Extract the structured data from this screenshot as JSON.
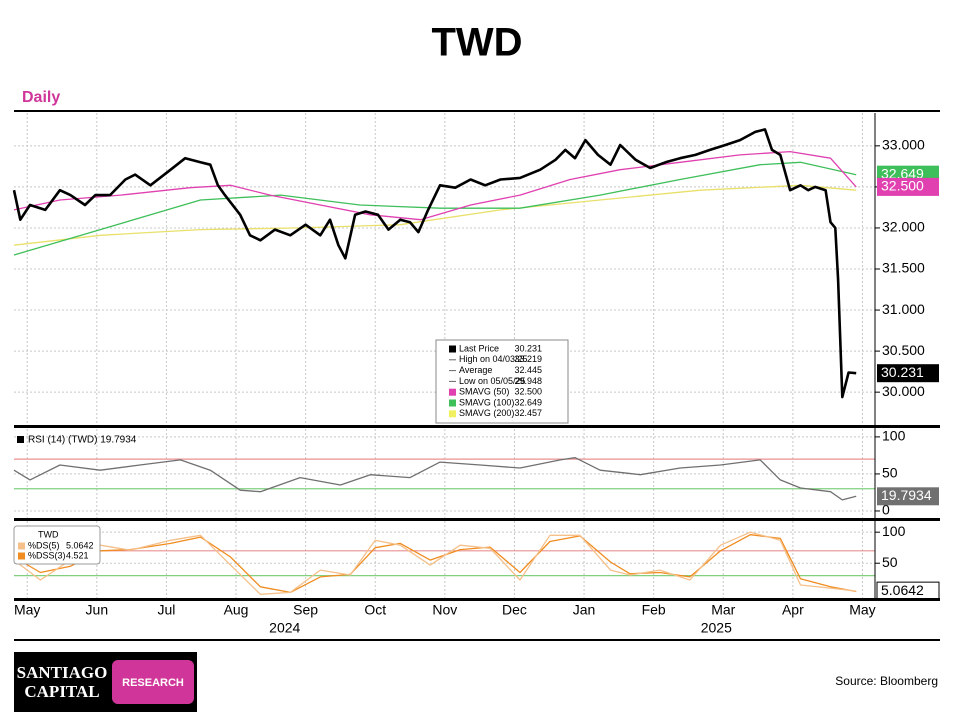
{
  "chart_data": [
    {
      "type": "line",
      "title": "TWD",
      "subtitle": "Daily",
      "xlim": [
        -0.19,
        12.18
      ],
      "ylim": [
        29.6,
        33.4
      ],
      "yticks": [
        {
          "value": 30,
          "label": "30.000"
        },
        {
          "value": 30.5,
          "label": "30.500"
        },
        {
          "value": 31,
          "label": "31.000"
        },
        {
          "value": 31.5,
          "label": "31.500"
        },
        {
          "value": 32,
          "label": "32.000"
        },
        {
          "value": 32.5,
          "label": "32.500"
        },
        {
          "value": 33,
          "label": "33.000"
        }
      ],
      "grid": true,
      "series": [
        {
          "name": "SMAVG (200)",
          "color": "#e8e06a",
          "last_label": null,
          "x": [
            -0.19,
            1.05,
            2.49,
            3.92,
            5.36,
            6.8,
            8.23,
            9.67,
            11.11,
            11.91
          ],
          "values": [
            31.79,
            31.91,
            31.98,
            32.0,
            32.04,
            32.22,
            32.34,
            32.46,
            32.52,
            32.46
          ]
        },
        {
          "name": "SMAVG (100)",
          "color": "#3fbf5a",
          "last_label": "32.649",
          "x": [
            -0.19,
            1.05,
            2.49,
            3.64,
            4.78,
            5.93,
            7.08,
            8.23,
            9.38,
            10.53,
            11.11,
            11.91
          ],
          "values": [
            31.67,
            31.98,
            32.34,
            32.4,
            32.28,
            32.24,
            32.24,
            32.4,
            32.59,
            32.77,
            32.8,
            32.649
          ]
        },
        {
          "name": "SMAVG (50)",
          "color": "#e040b0",
          "last_label": "32.500",
          "x": [
            -0.19,
            0.47,
            1.34,
            2.34,
            2.92,
            3.49,
            4.21,
            4.93,
            5.65,
            6.37,
            7.08,
            7.8,
            8.52,
            9.38,
            10.24,
            10.96,
            11.54,
            11.91
          ],
          "values": [
            32.22,
            32.34,
            32.4,
            32.49,
            32.52,
            32.4,
            32.28,
            32.16,
            32.1,
            32.28,
            32.4,
            32.59,
            32.71,
            32.8,
            32.89,
            32.93,
            32.85,
            32.5
          ]
        },
        {
          "name": "Last Price",
          "color": "#000000",
          "last_label": "30.231",
          "x": [
            -0.19,
            -0.1,
            0.04,
            0.26,
            0.47,
            0.62,
            0.83,
            0.98,
            1.19,
            1.41,
            1.55,
            1.77,
            2.06,
            2.27,
            2.49,
            2.63,
            2.74,
            2.84,
            3.06,
            3.2,
            3.35,
            3.56,
            3.78,
            4.0,
            4.21,
            4.35,
            4.47,
            4.57,
            4.71,
            4.86,
            5.04,
            5.19,
            5.36,
            5.5,
            5.62,
            5.76,
            5.93,
            6.15,
            6.37,
            6.58,
            6.8,
            7.08,
            7.37,
            7.59,
            7.73,
            7.87,
            8.02,
            8.2,
            8.38,
            8.52,
            8.74,
            8.95,
            9.17,
            9.38,
            9.6,
            9.81,
            10.03,
            10.24,
            10.46,
            10.6,
            10.7,
            10.82,
            10.96,
            11.11,
            11.22,
            11.32,
            11.47,
            11.54,
            11.61,
            11.65,
            11.71,
            11.8,
            11.91
          ],
          "values": [
            32.46,
            32.1,
            32.28,
            32.22,
            32.46,
            32.4,
            32.28,
            32.4,
            32.4,
            32.59,
            32.65,
            32.52,
            32.71,
            32.85,
            32.8,
            32.77,
            32.52,
            32.4,
            32.16,
            31.91,
            31.85,
            31.98,
            31.91,
            32.04,
            31.91,
            32.1,
            31.79,
            31.63,
            32.16,
            32.2,
            32.16,
            31.98,
            32.1,
            32.07,
            31.95,
            32.22,
            32.52,
            32.49,
            32.59,
            32.52,
            32.59,
            32.61,
            32.71,
            32.83,
            32.95,
            32.85,
            33.07,
            32.89,
            32.77,
            33.01,
            32.83,
            32.73,
            32.8,
            32.85,
            32.89,
            32.95,
            33.01,
            33.07,
            33.17,
            33.2,
            32.95,
            32.89,
            32.46,
            32.52,
            32.46,
            32.5,
            32.46,
            32.07,
            32.0,
            31.37,
            29.94,
            30.24,
            30.231
          ]
        }
      ],
      "legend_rows": [
        {
          "label": "Last Price",
          "value": "30.231",
          "swatch": "#000000"
        },
        {
          "label": "High on 04/03/25",
          "value": "33.219",
          "swatch": null
        },
        {
          "label": "Average",
          "value": "32.445",
          "swatch": null
        },
        {
          "label": "Low on 05/05/25",
          "value": "29.948",
          "swatch": null
        },
        {
          "label": "SMAVG (50)",
          "value": "32.500",
          "swatch": "#e040b0"
        },
        {
          "label": "SMAVG (100)",
          "value": "32.649",
          "swatch": "#3fbf5a"
        },
        {
          "label": "SMAVG (200)",
          "value": "32.457",
          "swatch": "#f0f060"
        }
      ]
    },
    {
      "type": "line",
      "xlim": [
        -0.19,
        12.18
      ],
      "ylim": [
        -9.5,
        112
      ],
      "yticks": [
        0,
        50,
        100
      ],
      "ref_lines": [
        {
          "value": 70,
          "color": "#e89090"
        },
        {
          "value": 30,
          "color": "#80d080"
        }
      ],
      "legend": "RSI (14) (TWD) 19.7934",
      "series": [
        {
          "name": "RSI",
          "color": "#707070",
          "last_label": "19.7934",
          "x": [
            -0.19,
            0.04,
            0.47,
            1.05,
            1.62,
            2.2,
            2.63,
            3.06,
            3.35,
            3.92,
            4.5,
            4.93,
            5.5,
            5.93,
            6.51,
            7.08,
            7.66,
            7.87,
            8.23,
            8.81,
            9.38,
            9.96,
            10.53,
            10.82,
            11.11,
            11.54,
            11.71,
            11.91
          ],
          "values": [
            55,
            42,
            62,
            55,
            62,
            69,
            55,
            28,
            26,
            45,
            35,
            49,
            45,
            66,
            62,
            58,
            69,
            72,
            55,
            49,
            58,
            62,
            69,
            42,
            31,
            26,
            15,
            19.7934
          ]
        }
      ]
    },
    {
      "type": "line",
      "xlim": [
        -0.19,
        12.18
      ],
      "ylim": [
        -6,
        118
      ],
      "yticks": [
        50,
        100
      ],
      "ref_lines": [
        {
          "value": 70,
          "color": "#e89090"
        },
        {
          "value": 30,
          "color": "#80d080"
        }
      ],
      "legend_title": "TWD",
      "legend_rows": [
        {
          "label": "%DS(5)",
          "value": "5.0642",
          "swatch": "#f5c08a"
        },
        {
          "label": "%DSS(3)",
          "value": "4.521",
          "swatch": "#f08c20"
        }
      ],
      "xticks": [
        {
          "value": 0,
          "label": "May"
        },
        {
          "value": 1,
          "label": "Jun"
        },
        {
          "value": 2,
          "label": "Jul"
        },
        {
          "value": 3,
          "label": "Aug"
        },
        {
          "value": 4,
          "label": "Sep"
        },
        {
          "value": 5,
          "label": "Oct"
        },
        {
          "value": 6,
          "label": "Nov"
        },
        {
          "value": 7,
          "label": "Dec"
        },
        {
          "value": 8,
          "label": "Jan"
        },
        {
          "value": 9,
          "label": "Feb"
        },
        {
          "value": 10,
          "label": "Mar"
        },
        {
          "value": 11,
          "label": "Apr"
        },
        {
          "value": 12,
          "label": "May"
        }
      ],
      "year_labels": [
        {
          "value": 3.7,
          "label": "2024"
        },
        {
          "value": 9.9,
          "label": "2025"
        }
      ],
      "series": [
        {
          "name": "%DSS(3)",
          "color": "#f08c20",
          "last_label": null,
          "x": [
            -0.19,
            0.19,
            0.62,
            1.05,
            1.48,
            2.06,
            2.49,
            2.92,
            3.35,
            3.78,
            4.21,
            4.64,
            5.0,
            5.36,
            5.79,
            6.22,
            6.65,
            7.08,
            7.51,
            7.94,
            8.38,
            8.66,
            9.09,
            9.52,
            9.96,
            10.39,
            10.82,
            11.11,
            11.54,
            11.91
          ],
          "values": [
            60,
            35,
            45,
            70,
            72,
            82,
            92,
            60,
            12,
            3,
            28,
            32,
            75,
            82,
            55,
            72,
            76,
            35,
            85,
            94,
            52,
            33,
            35,
            28,
            70,
            96,
            90,
            25,
            12,
            4.521
          ]
        },
        {
          "name": "%DS(5)",
          "color": "#f5c08a",
          "last_label": "5.0642",
          "x": [
            -0.19,
            0.19,
            0.62,
            1.05,
            1.48,
            2.06,
            2.49,
            2.92,
            3.35,
            3.78,
            4.21,
            4.64,
            5.0,
            5.36,
            5.79,
            6.22,
            6.65,
            7.08,
            7.51,
            7.94,
            8.38,
            8.66,
            9.09,
            9.52,
            9.96,
            10.39,
            10.82,
            11.11,
            11.54,
            11.91
          ],
          "values": [
            55,
            23,
            55,
            79,
            71,
            87,
            95,
            47,
            0,
            3,
            39,
            31,
            87,
            79,
            47,
            79,
            74,
            23,
            95,
            95,
            39,
            31,
            39,
            23,
            79,
            100,
            87,
            15,
            10,
            5.0642
          ]
        }
      ]
    }
  ],
  "footer": {
    "logo_top": "SANTIAGO",
    "logo_bottom": "CAPITAL",
    "logo_tag": "RESEARCH",
    "source": "Source: Bloomberg"
  }
}
